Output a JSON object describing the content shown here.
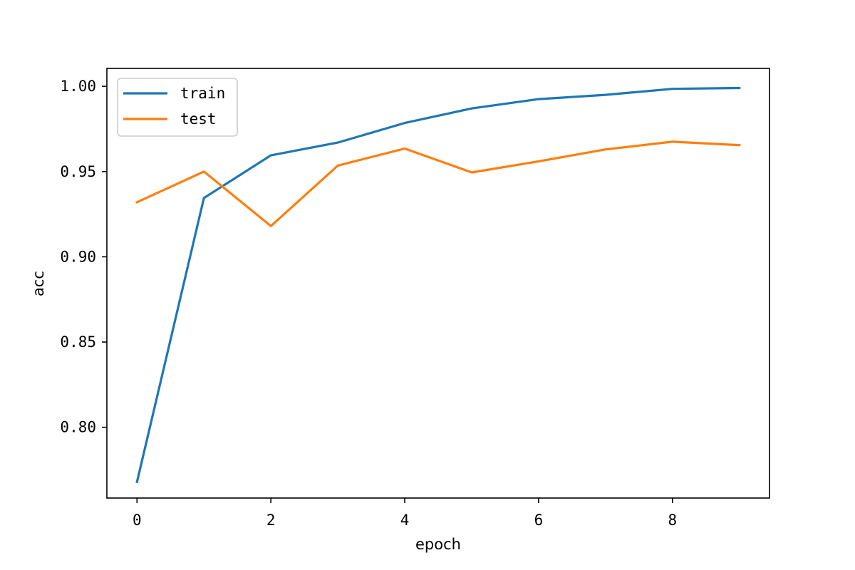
{
  "chart_data": {
    "type": "line",
    "title": "",
    "xlabel": "epoch",
    "ylabel": "acc",
    "xlim": [
      -0.45,
      9.45
    ],
    "ylim": [
      0.7585,
      1.0105
    ],
    "xticks": [
      0,
      2,
      4,
      6,
      8
    ],
    "xtick_labels": [
      "0",
      "2",
      "4",
      "6",
      "8"
    ],
    "yticks": [
      0.8,
      0.85,
      0.9,
      0.95,
      1.0
    ],
    "ytick_labels": [
      "0.80",
      "0.85",
      "0.90",
      "0.95",
      "1.00"
    ],
    "grid": false,
    "legend_position": "top-left",
    "x": [
      0,
      1,
      2,
      3,
      4,
      5,
      6,
      7,
      8,
      9
    ],
    "series": [
      {
        "name": "train",
        "color": "#1f77b4",
        "values": [
          0.768,
          0.9345,
          0.9595,
          0.967,
          0.9785,
          0.987,
          0.9925,
          0.995,
          0.9985,
          0.999
        ]
      },
      {
        "name": "test",
        "color": "#ff7f0e",
        "values": [
          0.932,
          0.95,
          0.918,
          0.9535,
          0.9635,
          0.9495,
          0.956,
          0.963,
          0.9675,
          0.9655
        ]
      }
    ]
  }
}
